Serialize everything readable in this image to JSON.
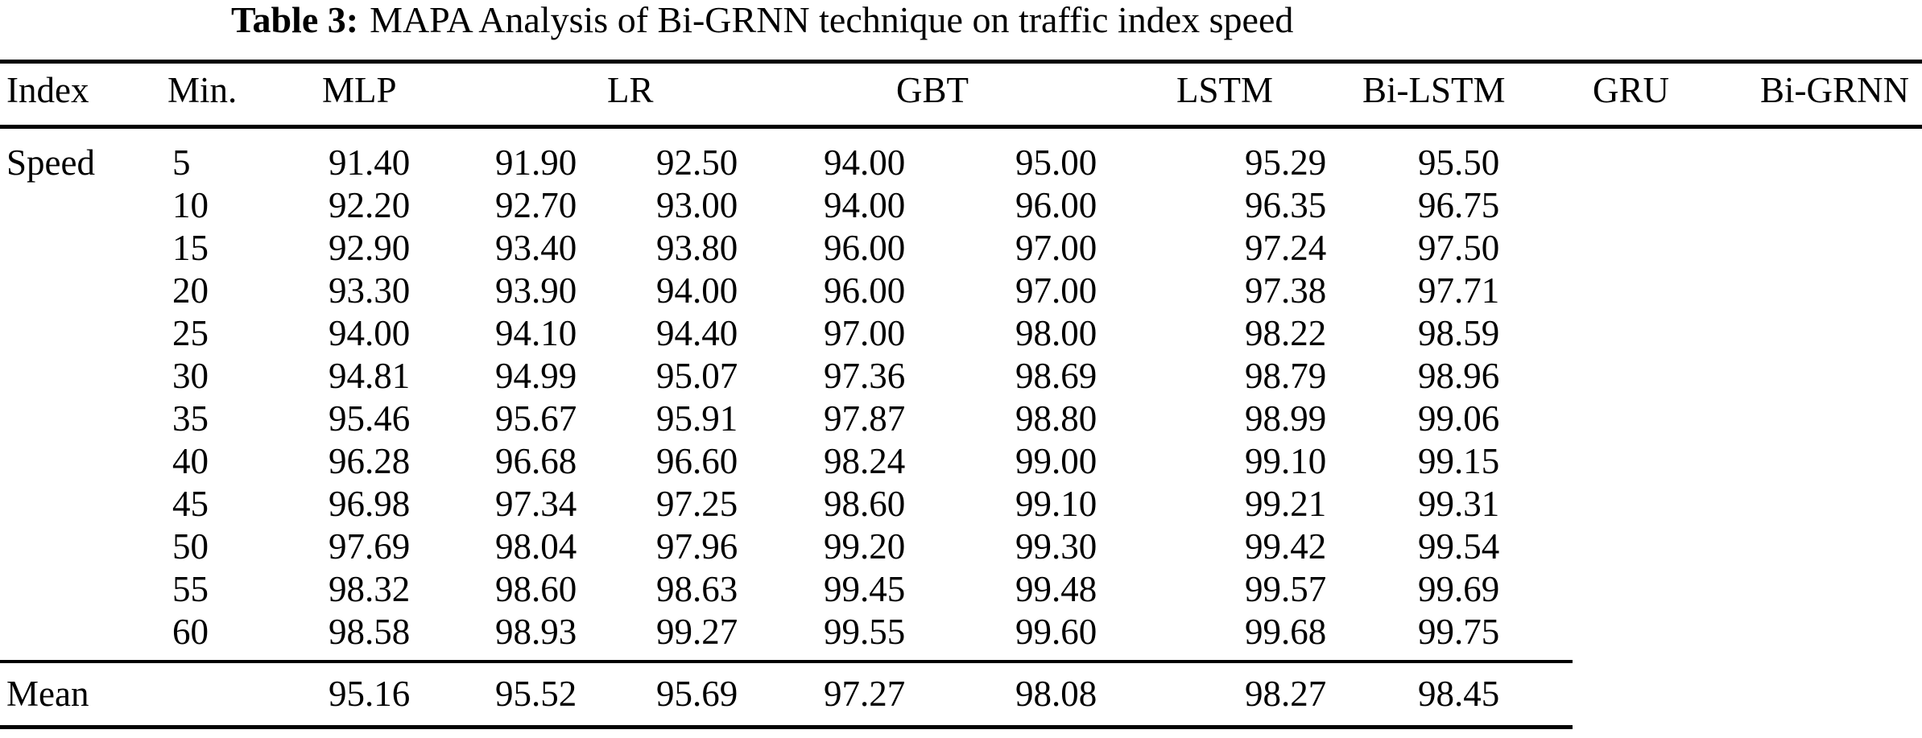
{
  "title": {
    "label": "Table 3:",
    "text": "MAPA Analysis of Bi-GRNN technique on traffic index speed"
  },
  "table": {
    "headers": [
      "Index",
      "Min.",
      "MLP",
      "LR",
      "GBT",
      "LSTM",
      "Bi-LSTM",
      "GRU",
      "Bi-GRNN"
    ],
    "index_label": "Speed",
    "mean_label": "Mean",
    "rows": [
      {
        "min": "5",
        "values": [
          "91.40",
          "91.90",
          "92.50",
          "94.00",
          "95.00",
          "95.29",
          "95.50"
        ]
      },
      {
        "min": "10",
        "values": [
          "92.20",
          "92.70",
          "93.00",
          "94.00",
          "96.00",
          "96.35",
          "96.75"
        ]
      },
      {
        "min": "15",
        "values": [
          "92.90",
          "93.40",
          "93.80",
          "96.00",
          "97.00",
          "97.24",
          "97.50"
        ]
      },
      {
        "min": "20",
        "values": [
          "93.30",
          "93.90",
          "94.00",
          "96.00",
          "97.00",
          "97.38",
          "97.71"
        ]
      },
      {
        "min": "25",
        "values": [
          "94.00",
          "94.10",
          "94.40",
          "97.00",
          "98.00",
          "98.22",
          "98.59"
        ]
      },
      {
        "min": "30",
        "values": [
          "94.81",
          "94.99",
          "95.07",
          "97.36",
          "98.69",
          "98.79",
          "98.96"
        ]
      },
      {
        "min": "35",
        "values": [
          "95.46",
          "95.67",
          "95.91",
          "97.87",
          "98.80",
          "98.99",
          "99.06"
        ]
      },
      {
        "min": "40",
        "values": [
          "96.28",
          "96.68",
          "96.60",
          "98.24",
          "99.00",
          "99.10",
          "99.15"
        ]
      },
      {
        "min": "45",
        "values": [
          "96.98",
          "97.34",
          "97.25",
          "98.60",
          "99.10",
          "99.21",
          "99.31"
        ]
      },
      {
        "min": "50",
        "values": [
          "97.69",
          "98.04",
          "97.96",
          "99.20",
          "99.30",
          "99.42",
          "99.54"
        ]
      },
      {
        "min": "55",
        "values": [
          "98.32",
          "98.60",
          "98.63",
          "99.45",
          "99.48",
          "99.57",
          "99.69"
        ]
      },
      {
        "min": "60",
        "values": [
          "98.58",
          "98.93",
          "99.27",
          "99.55",
          "99.60",
          "99.68",
          "99.75"
        ]
      }
    ],
    "mean_values": [
      "95.16",
      "95.52",
      "95.69",
      "97.27",
      "98.08",
      "98.27",
      "98.45"
    ]
  }
}
